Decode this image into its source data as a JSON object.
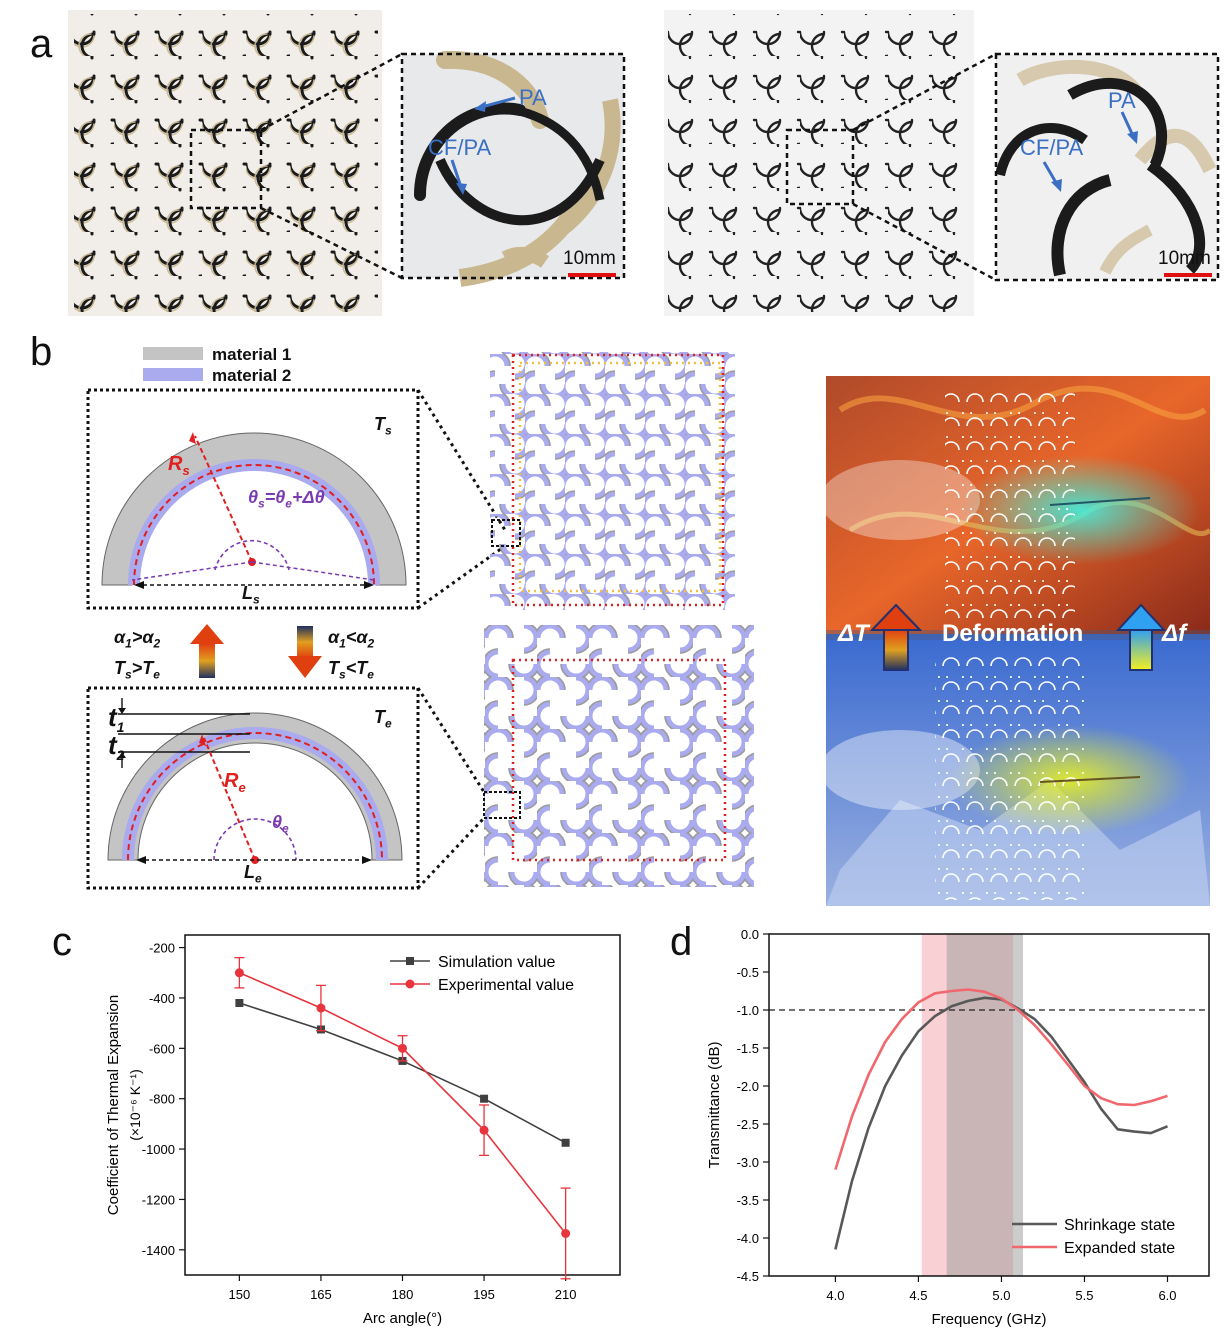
{
  "panels": {
    "a": "a",
    "b": "b",
    "c": "c",
    "d": "d"
  },
  "panel_a": {
    "left_labels": {
      "pa": "PA",
      "cfpa": "CF/PA",
      "scale": "10mm"
    },
    "right_labels": {
      "pa": "PA",
      "cfpa": "CF/PA",
      "scale": "10mm"
    },
    "colors": {
      "cf": "#1b1b1b",
      "pa": "#c9b88f",
      "label": "#3a6fc4",
      "scalebar": "#e01010"
    }
  },
  "panel_b": {
    "legend": {
      "m1": "material 1",
      "m2": "material 2"
    },
    "top": {
      "T": "T",
      "Tsub": "s",
      "R": "R",
      "Rsub": "s",
      "theta": "θ",
      "thetaSub": "s",
      "thetaEq": "=θ",
      "thetaEqSub": "e",
      "thetaPlus": "+Δθ",
      "L": "L",
      "Lsub": "s"
    },
    "bottom": {
      "T": "T",
      "Tsub": "e",
      "R": "R",
      "Rsub": "e",
      "theta": "θ",
      "thetaSub": "e",
      "L": "L",
      "Lsub": "e",
      "t1": "t",
      "t1sub": "1",
      "t2": "t",
      "t2sub": "2"
    },
    "cond_left": {
      "a1": "α",
      "s1": "1",
      "gt": ">α",
      "s2": "2",
      "ts": "T",
      "tss": "s",
      "gt2": ">T",
      "tes": "e"
    },
    "cond_right": {
      "a1": "α",
      "s1": "1",
      "lt": "<α",
      "s2": "2",
      "ts": "T",
      "tss": "s",
      "lt2": "<T",
      "tes": "e"
    },
    "render": {
      "dT": "ΔT",
      "deformation": "Deformation",
      "df": "Δf"
    },
    "colors": {
      "m1": "#c4c4c4",
      "m2": "#aaaaee",
      "red": "#e02020",
      "purple": "#7a3ab0"
    }
  },
  "chart_data": [
    {
      "type": "line",
      "panel": "c",
      "xlabel": "Arc angle(°)",
      "ylabel": "Coefficient of Thermal Expansion",
      "ylabel2": "(×10⁻⁶ K⁻¹)",
      "xlim": [
        140,
        220
      ],
      "ylim": [
        -1500,
        -150
      ],
      "xticks": [
        150,
        165,
        180,
        195,
        210
      ],
      "yticks": [
        -200,
        -400,
        -600,
        -800,
        -1000,
        -1200,
        -1400
      ],
      "legend_position": "top-right",
      "series": [
        {
          "name": "Simulation value",
          "color": "#404040",
          "marker": "square",
          "x": [
            150,
            165,
            180,
            195,
            210
          ],
          "y": [
            -420,
            -525,
            -650,
            -800,
            -975
          ]
        },
        {
          "name": "Experimental value",
          "color": "#e8343c",
          "marker": "circle",
          "x": [
            150,
            165,
            180,
            195,
            210
          ],
          "y": [
            -300,
            -440,
            -600,
            -925,
            -1335
          ],
          "err": [
            60,
            90,
            50,
            100,
            180
          ]
        }
      ]
    },
    {
      "type": "line",
      "panel": "d",
      "xlabel": "Frequency (GHz)",
      "ylabel": "Transmittance (dB)",
      "xlim": [
        3.6,
        6.25
      ],
      "ylim": [
        -4.5,
        0
      ],
      "xticks": [
        4.0,
        4.5,
        5.0,
        5.5,
        6.0
      ],
      "yticks": [
        0.0,
        -0.5,
        -1.0,
        -1.5,
        -2.0,
        -2.5,
        -3.0,
        -3.5,
        -4.0,
        -4.5
      ],
      "reference_line": -1.0,
      "bands": [
        {
          "from": 4.52,
          "to": 5.07,
          "color": "#f4a9ae",
          "opacity": 0.55
        },
        {
          "from": 4.67,
          "to": 5.13,
          "color": "#9a9a9a",
          "opacity": 0.5
        }
      ],
      "legend_position": "bottom-right",
      "series": [
        {
          "name": "Shrinkage state",
          "color": "#585858",
          "x": [
            4.0,
            4.1,
            4.2,
            4.3,
            4.4,
            4.5,
            4.6,
            4.7,
            4.8,
            4.9,
            5.0,
            5.1,
            5.2,
            5.3,
            5.4,
            5.5,
            5.6,
            5.7,
            5.8,
            5.9,
            6.0
          ],
          "y": [
            -4.15,
            -3.25,
            -2.55,
            -2.0,
            -1.6,
            -1.28,
            -1.08,
            -0.95,
            -0.88,
            -0.84,
            -0.86,
            -0.98,
            -1.12,
            -1.35,
            -1.65,
            -1.95,
            -2.3,
            -2.57,
            -2.6,
            -2.62,
            -2.53
          ]
        },
        {
          "name": "Expanded state",
          "color": "#f0686e",
          "x": [
            4.0,
            4.1,
            4.2,
            4.3,
            4.4,
            4.5,
            4.6,
            4.7,
            4.8,
            4.9,
            5.0,
            5.1,
            5.2,
            5.3,
            5.4,
            5.5,
            5.6,
            5.7,
            5.8,
            5.9,
            6.0
          ],
          "y": [
            -3.1,
            -2.4,
            -1.85,
            -1.42,
            -1.12,
            -0.9,
            -0.78,
            -0.75,
            -0.73,
            -0.76,
            -0.85,
            -1.0,
            -1.2,
            -1.45,
            -1.72,
            -2.0,
            -2.16,
            -2.24,
            -2.25,
            -2.2,
            -2.13
          ]
        }
      ]
    }
  ]
}
